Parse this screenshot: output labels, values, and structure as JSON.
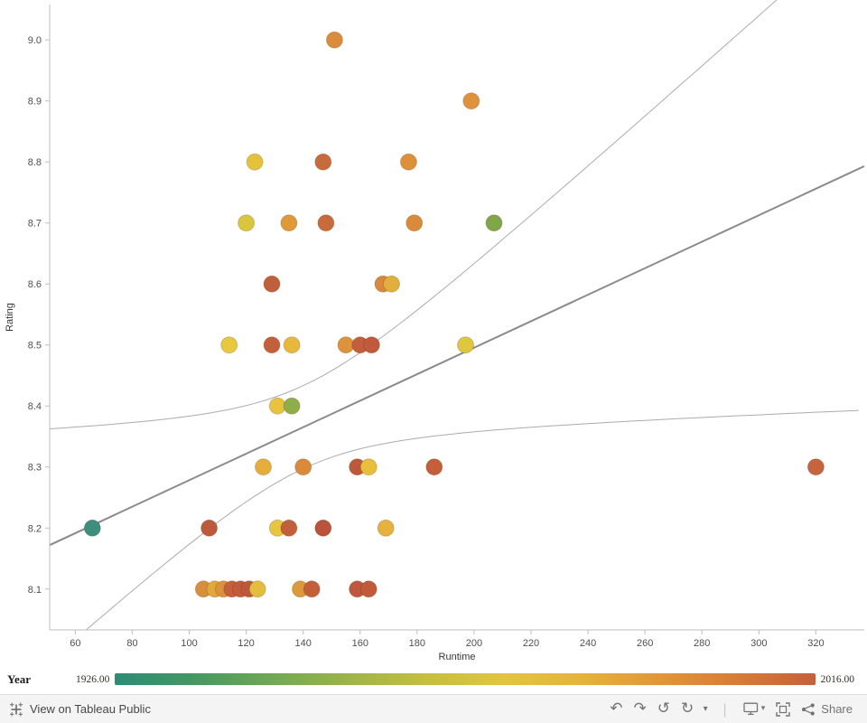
{
  "chart_data": {
    "type": "scatter",
    "title": "",
    "xlabel": "Runtime",
    "ylabel": "Rating",
    "x_domain": [
      51,
      337
    ],
    "y_domain": [
      8.033,
      9.058
    ],
    "x_ticks": [
      60,
      80,
      100,
      120,
      140,
      160,
      180,
      200,
      220,
      240,
      260,
      280,
      300,
      320
    ],
    "y_ticks": [
      8.1,
      8.2,
      8.3,
      8.4,
      8.5,
      8.6,
      8.7,
      8.8,
      8.9,
      9.0
    ],
    "grid": false,
    "point_radius": 9,
    "trend": {
      "x1": 51,
      "y1": 8.172,
      "x2": 337,
      "y2": 8.793
    },
    "band": {
      "center_x": 140,
      "a": 0.00462,
      "b": 4e-06
    },
    "points": [
      {
        "runtime": 151,
        "rating": 9.0,
        "color": "#DB8B3C"
      },
      {
        "runtime": 199,
        "rating": 8.9,
        "color": "#DE923B"
      },
      {
        "runtime": 123,
        "rating": 8.8,
        "color": "#E5C23E"
      },
      {
        "runtime": 147,
        "rating": 8.8,
        "color": "#C96A3C"
      },
      {
        "runtime": 177,
        "rating": 8.8,
        "color": "#DD8F3A"
      },
      {
        "runtime": 120,
        "rating": 8.7,
        "color": "#D9C53E"
      },
      {
        "runtime": 135,
        "rating": 8.7,
        "color": "#E0993A"
      },
      {
        "runtime": 148,
        "rating": 8.7,
        "color": "#C76B3D"
      },
      {
        "runtime": 179,
        "rating": 8.7,
        "color": "#DA8A3B"
      },
      {
        "runtime": 207,
        "rating": 8.7,
        "color": "#7FA64B"
      },
      {
        "runtime": 129,
        "rating": 8.6,
        "color": "#C05F3C"
      },
      {
        "runtime": 168,
        "rating": 8.6,
        "color": "#D8893B"
      },
      {
        "runtime": 171,
        "rating": 8.6,
        "color": "#E2AF3C"
      },
      {
        "runtime": 114,
        "rating": 8.5,
        "color": "#E7C83F"
      },
      {
        "runtime": 129,
        "rating": 8.5,
        "color": "#C2603C"
      },
      {
        "runtime": 136,
        "rating": 8.5,
        "color": "#E8B83D"
      },
      {
        "runtime": 155,
        "rating": 8.5,
        "color": "#DD923B"
      },
      {
        "runtime": 160,
        "rating": 8.5,
        "color": "#C25E3B"
      },
      {
        "runtime": 164,
        "rating": 8.5,
        "color": "#C1593B"
      },
      {
        "runtime": 197,
        "rating": 8.5,
        "color": "#DFC63F"
      },
      {
        "runtime": 131,
        "rating": 8.4,
        "color": "#E7C33E"
      },
      {
        "runtime": 136,
        "rating": 8.4,
        "color": "#8FAD49"
      },
      {
        "runtime": 126,
        "rating": 8.3,
        "color": "#E5AE3C"
      },
      {
        "runtime": 140,
        "rating": 8.3,
        "color": "#D98A3B"
      },
      {
        "runtime": 159,
        "rating": 8.3,
        "color": "#BE583B"
      },
      {
        "runtime": 163,
        "rating": 8.3,
        "color": "#E8BE3D"
      },
      {
        "runtime": 186,
        "rating": 8.3,
        "color": "#C45F3B"
      },
      {
        "runtime": 320,
        "rating": 8.3,
        "color": "#C66440"
      },
      {
        "runtime": 66,
        "rating": 8.2,
        "color": "#3E8E7D"
      },
      {
        "runtime": 107,
        "rating": 8.2,
        "color": "#BE5A3B"
      },
      {
        "runtime": 131,
        "rating": 8.2,
        "color": "#E8C53E"
      },
      {
        "runtime": 135,
        "rating": 8.2,
        "color": "#C2603C"
      },
      {
        "runtime": 147,
        "rating": 8.2,
        "color": "#B9533A"
      },
      {
        "runtime": 169,
        "rating": 8.2,
        "color": "#E6B13C"
      },
      {
        "runtime": 105,
        "rating": 8.1,
        "color": "#D88F3C"
      },
      {
        "runtime": 109,
        "rating": 8.1,
        "color": "#DFA93C"
      },
      {
        "runtime": 112,
        "rating": 8.1,
        "color": "#DA923B"
      },
      {
        "runtime": 115,
        "rating": 8.1,
        "color": "#C4613C"
      },
      {
        "runtime": 118,
        "rating": 8.1,
        "color": "#C05C3B"
      },
      {
        "runtime": 121,
        "rating": 8.1,
        "color": "#BF583B"
      },
      {
        "runtime": 124,
        "rating": 8.1,
        "color": "#E3BE3E"
      },
      {
        "runtime": 139,
        "rating": 8.1,
        "color": "#DC9A3B"
      },
      {
        "runtime": 143,
        "rating": 8.1,
        "color": "#C45F3C"
      },
      {
        "runtime": 159,
        "rating": 8.1,
        "color": "#BE573B"
      },
      {
        "runtime": 163,
        "rating": 8.1,
        "color": "#C05A3B"
      }
    ],
    "colors": {
      "axis_line": "#bdbdbd",
      "tick_label": "#4e4e4e",
      "trend_line": "#8a8a8a",
      "confidence_band": "#ababab"
    }
  },
  "legend": {
    "title": "Year",
    "min": "1926.00",
    "max": "2016.00",
    "gradient": [
      "#2E8B75",
      "#459763",
      "#6FA855",
      "#9DB44B",
      "#C5BE41",
      "#E2C53E",
      "#E5B33C",
      "#E09639",
      "#D67C3A",
      "#C4603C"
    ]
  },
  "toolbar": {
    "view_label": "View on Tableau Public",
    "share_label": "Share",
    "icons": {
      "tableau_logo": "tableau-logo",
      "undo": "↶",
      "redo": "↷",
      "reset": "↺",
      "refresh": "↻",
      "caret": "▾",
      "separator": "❘"
    }
  }
}
